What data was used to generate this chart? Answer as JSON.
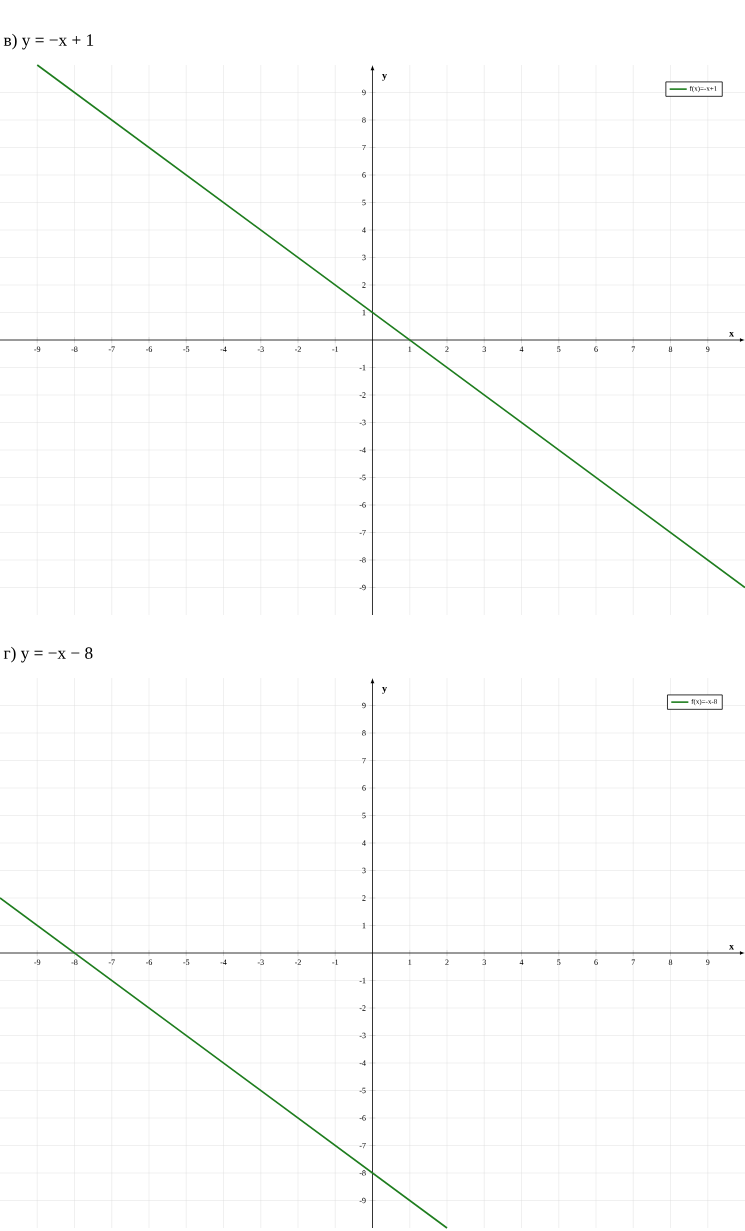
{
  "chart_data": [
    {
      "type": "line",
      "title": "в) y = −x + 1",
      "xlabel": "x",
      "ylabel": "y",
      "series": [
        {
          "name": "f(x)=-x+1",
          "color": "#1e7d1e",
          "x": [
            -9,
            10
          ],
          "values": [
            10,
            -9
          ]
        }
      ],
      "xlim": [
        -10,
        10
      ],
      "ylim": [
        -10,
        10
      ],
      "xticks": [
        -9,
        -8,
        -7,
        -6,
        -5,
        -4,
        -3,
        -2,
        -1,
        1,
        2,
        3,
        4,
        5,
        6,
        7,
        8,
        9
      ],
      "yticks": [
        -9,
        -8,
        -7,
        -6,
        -5,
        -4,
        -3,
        -2,
        -1,
        1,
        2,
        3,
        4,
        5,
        6,
        7,
        8,
        9
      ],
      "grid": true,
      "legend": "top right"
    },
    {
      "type": "line",
      "title": "г) y = −x − 8",
      "xlabel": "x",
      "ylabel": "y",
      "series": [
        {
          "name": "f(x)=-x-8",
          "color": "#1e7d1e",
          "x": [
            -10,
            2
          ],
          "values": [
            2,
            -10
          ]
        }
      ],
      "xlim": [
        -10,
        10
      ],
      "ylim": [
        -10,
        10
      ],
      "xticks": [
        -9,
        -8,
        -7,
        -6,
        -5,
        -4,
        -3,
        -2,
        -1,
        1,
        2,
        3,
        4,
        5,
        6,
        7,
        8,
        9
      ],
      "yticks": [
        -9,
        -8,
        -7,
        -6,
        -5,
        -4,
        -3,
        -2,
        -1,
        1,
        2,
        3,
        4,
        5,
        6,
        7,
        8,
        9
      ],
      "grid": true,
      "legend": "top right"
    }
  ]
}
